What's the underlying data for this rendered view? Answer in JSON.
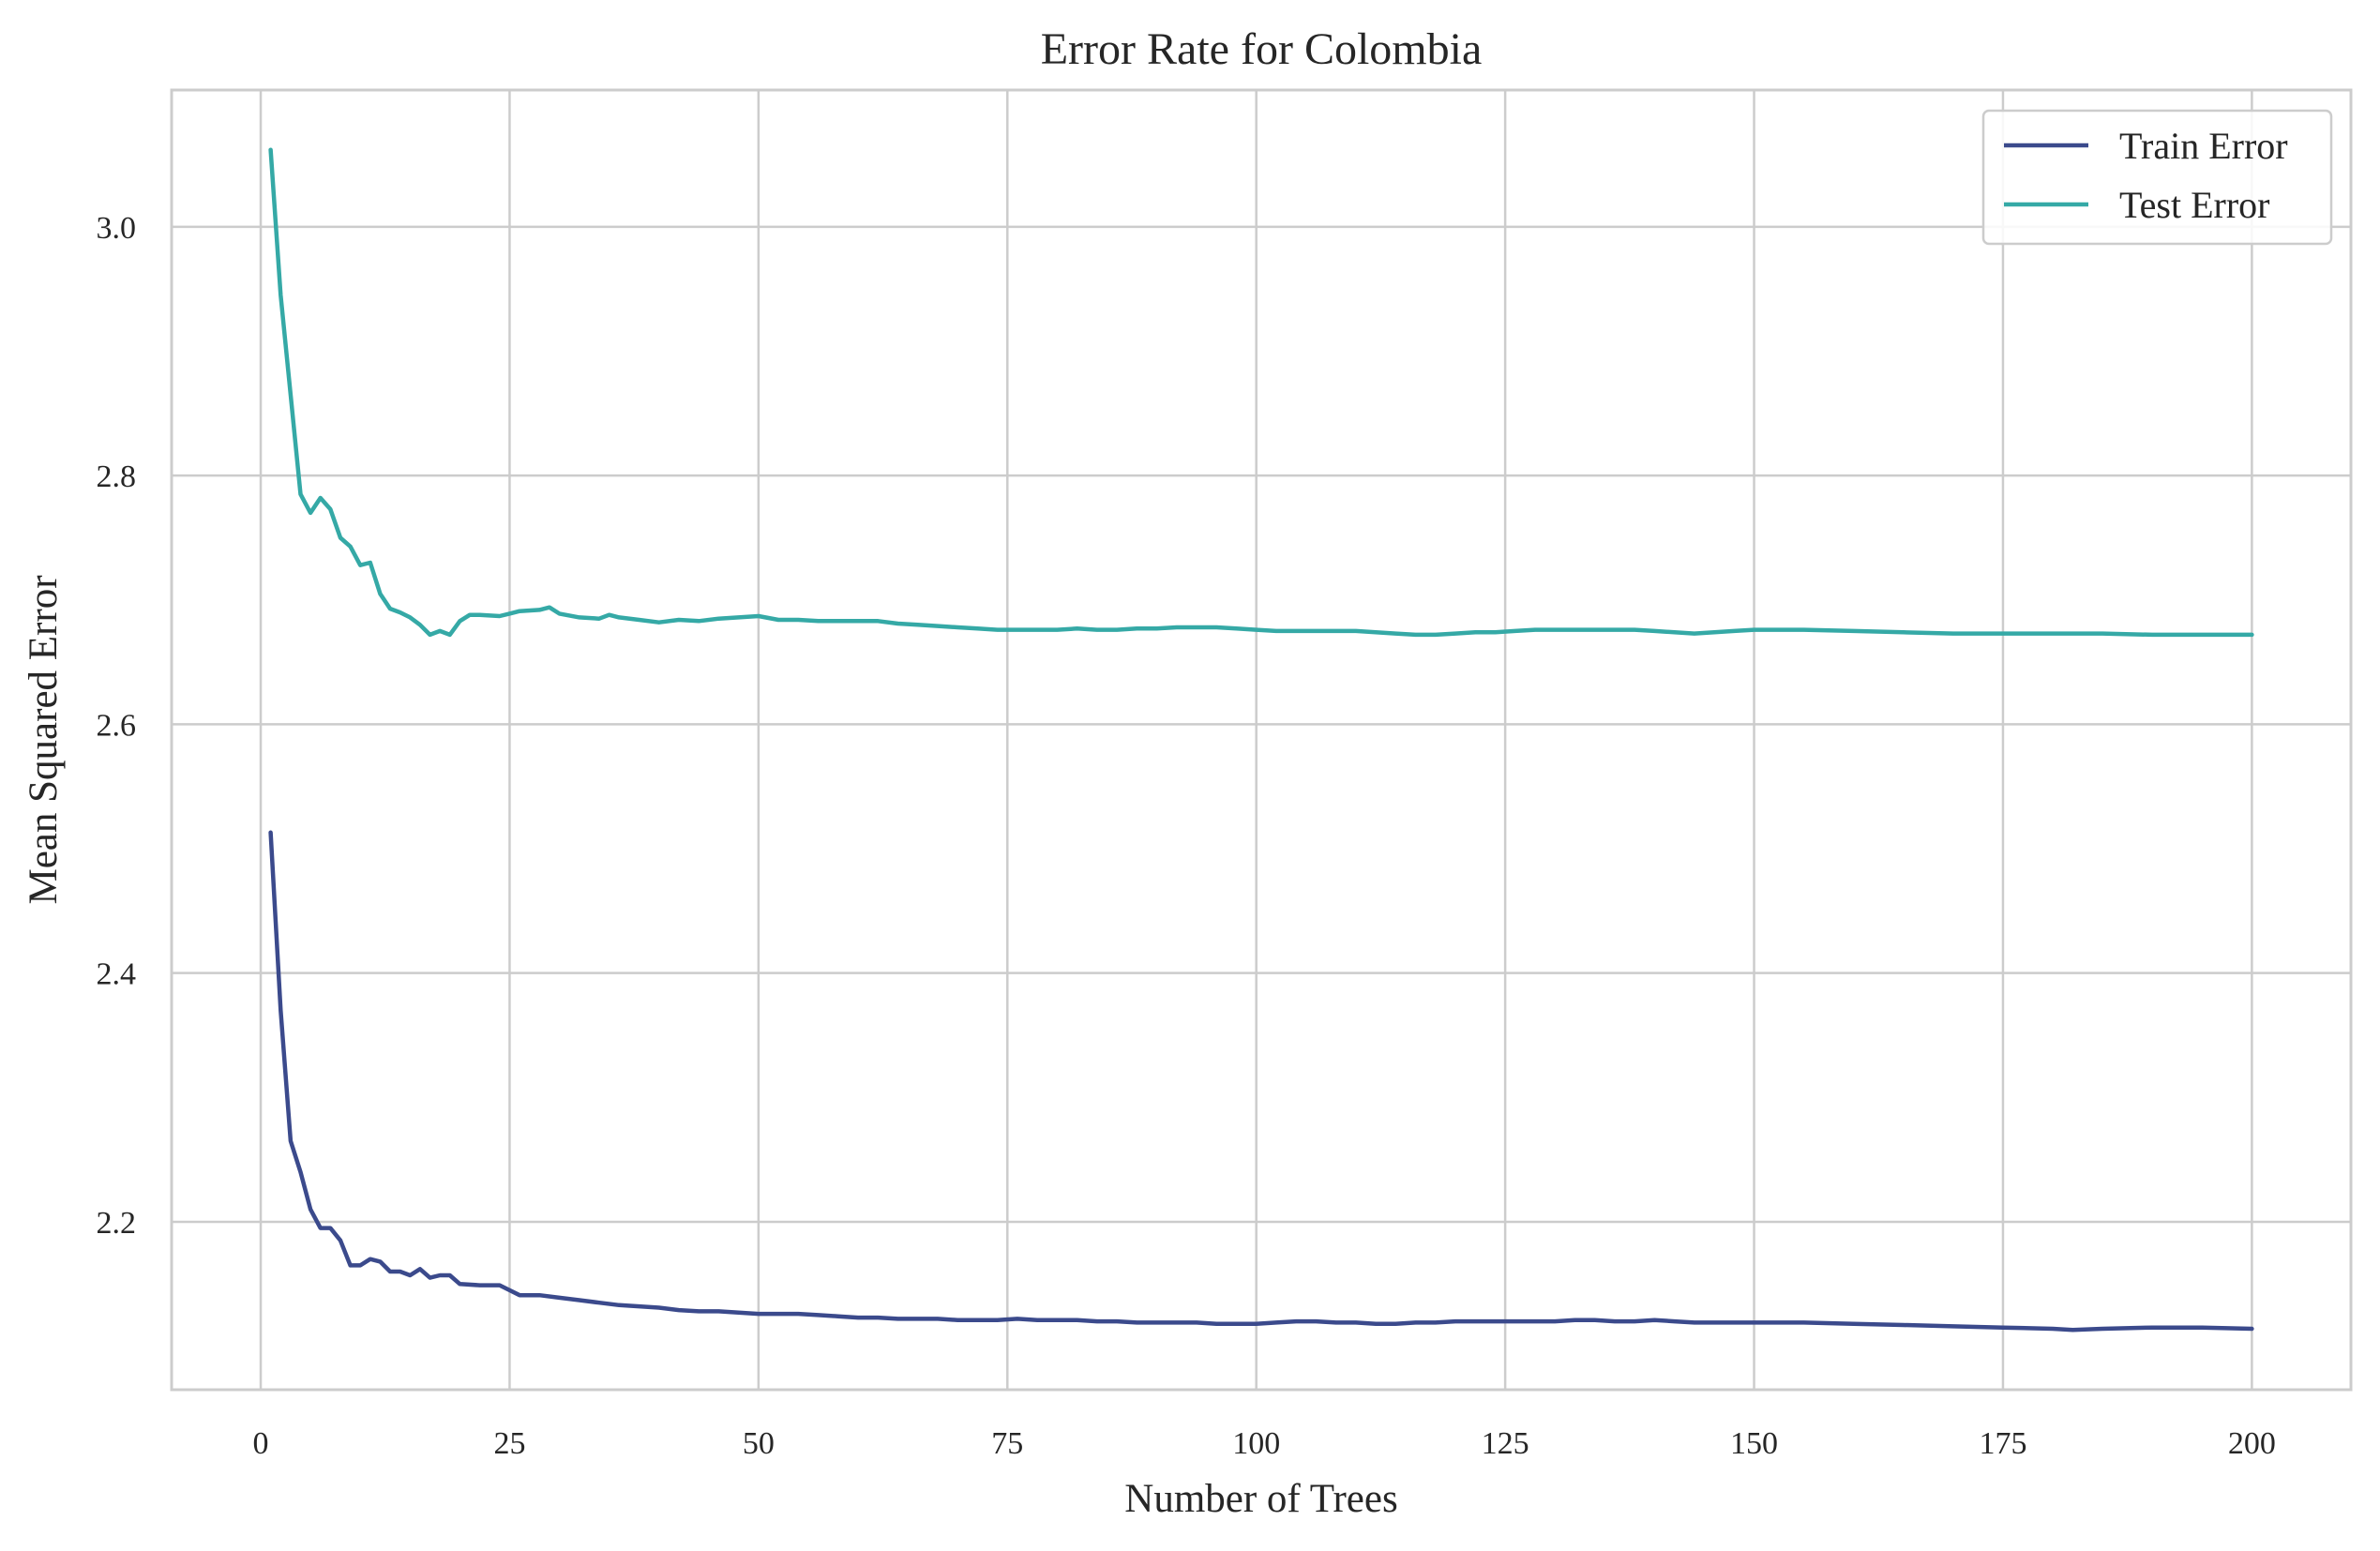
{
  "chart_data": {
    "type": "line",
    "title": "Error Rate for Colombia",
    "xlabel": "Number of Trees",
    "ylabel": "Mean Squared Error",
    "xlim": [
      -8.95,
      209.95
    ],
    "ylim": [
      2.065,
      3.11
    ],
    "xticks": [
      0,
      25,
      50,
      75,
      100,
      125,
      150,
      175,
      200
    ],
    "yticks": [
      2.2,
      2.4,
      2.6,
      2.8,
      3.0
    ],
    "ytick_labels": [
      "2.2",
      "2.4",
      "2.6",
      "2.8",
      "3.0"
    ],
    "grid": true,
    "legend": {
      "position": "top-right",
      "entries": [
        "Train Error",
        "Test Error"
      ]
    },
    "colors": {
      "train": "#3b4a8c",
      "test": "#35a9a6",
      "grid": "#cccccc",
      "axes": "#cccccc"
    },
    "series": [
      {
        "name": "Train Error",
        "color": "#3b4a8c",
        "x": [
          1,
          2,
          3,
          4,
          5,
          6,
          7,
          8,
          9,
          10,
          11,
          12,
          13,
          14,
          15,
          16,
          17,
          18,
          19,
          20,
          22,
          24,
          25,
          26,
          28,
          30,
          32,
          34,
          36,
          38,
          40,
          42,
          44,
          46,
          48,
          50,
          52,
          54,
          56,
          58,
          60,
          62,
          64,
          66,
          68,
          70,
          72,
          74,
          76,
          78,
          80,
          82,
          84,
          86,
          88,
          90,
          92,
          94,
          96,
          98,
          100,
          102,
          104,
          106,
          108,
          110,
          112,
          114,
          116,
          118,
          120,
          122,
          124,
          126,
          128,
          130,
          132,
          134,
          136,
          138,
          140,
          142,
          144,
          146,
          148,
          150,
          155,
          160,
          165,
          170,
          175,
          180,
          182,
          185,
          190,
          195,
          200
        ],
        "values": [
          2.513,
          2.37,
          2.265,
          2.24,
          2.21,
          2.195,
          2.195,
          2.185,
          2.165,
          2.165,
          2.17,
          2.168,
          2.16,
          2.16,
          2.157,
          2.162,
          2.155,
          2.157,
          2.157,
          2.15,
          2.149,
          2.149,
          2.145,
          2.141,
          2.141,
          2.139,
          2.137,
          2.135,
          2.133,
          2.132,
          2.131,
          2.129,
          2.128,
          2.128,
          2.127,
          2.126,
          2.126,
          2.126,
          2.125,
          2.124,
          2.123,
          2.123,
          2.122,
          2.122,
          2.122,
          2.121,
          2.121,
          2.121,
          2.122,
          2.121,
          2.121,
          2.121,
          2.12,
          2.12,
          2.119,
          2.119,
          2.119,
          2.119,
          2.118,
          2.118,
          2.118,
          2.119,
          2.12,
          2.12,
          2.119,
          2.119,
          2.118,
          2.118,
          2.119,
          2.119,
          2.12,
          2.12,
          2.12,
          2.12,
          2.12,
          2.12,
          2.121,
          2.121,
          2.12,
          2.12,
          2.121,
          2.12,
          2.119,
          2.119,
          2.119,
          2.119,
          2.119,
          2.118,
          2.117,
          2.116,
          2.115,
          2.114,
          2.113,
          2.114,
          2.115,
          2.115,
          2.114
        ]
      },
      {
        "name": "Test Error",
        "color": "#35a9a6",
        "x": [
          1,
          2,
          3,
          4,
          5,
          6,
          7,
          8,
          9,
          10,
          11,
          12,
          13,
          14,
          15,
          16,
          17,
          18,
          19,
          20,
          21,
          22,
          24,
          25,
          26,
          28,
          29,
          30,
          32,
          34,
          35,
          36,
          38,
          40,
          42,
          44,
          46,
          48,
          50,
          52,
          54,
          56,
          58,
          60,
          62,
          64,
          66,
          68,
          70,
          72,
          74,
          76,
          78,
          80,
          82,
          84,
          86,
          88,
          90,
          92,
          94,
          96,
          98,
          100,
          102,
          104,
          106,
          108,
          110,
          112,
          114,
          116,
          118,
          120,
          122,
          124,
          126,
          128,
          130,
          132,
          134,
          136,
          138,
          140,
          142,
          144,
          146,
          148,
          150,
          155,
          160,
          165,
          170,
          175,
          180,
          185,
          190,
          195,
          200
        ],
        "values": [
          3.062,
          2.945,
          2.865,
          2.785,
          2.77,
          2.782,
          2.773,
          2.75,
          2.743,
          2.728,
          2.73,
          2.705,
          2.693,
          2.69,
          2.686,
          2.68,
          2.672,
          2.675,
          2.672,
          2.683,
          2.688,
          2.688,
          2.687,
          2.689,
          2.691,
          2.692,
          2.694,
          2.689,
          2.686,
          2.685,
          2.688,
          2.686,
          2.684,
          2.682,
          2.684,
          2.683,
          2.685,
          2.686,
          2.687,
          2.684,
          2.684,
          2.683,
          2.683,
          2.683,
          2.683,
          2.681,
          2.68,
          2.679,
          2.678,
          2.677,
          2.676,
          2.676,
          2.676,
          2.676,
          2.677,
          2.676,
          2.676,
          2.677,
          2.677,
          2.678,
          2.678,
          2.678,
          2.677,
          2.676,
          2.675,
          2.675,
          2.675,
          2.675,
          2.675,
          2.674,
          2.673,
          2.672,
          2.672,
          2.673,
          2.674,
          2.674,
          2.675,
          2.676,
          2.676,
          2.676,
          2.676,
          2.676,
          2.676,
          2.675,
          2.674,
          2.673,
          2.674,
          2.675,
          2.676,
          2.676,
          2.675,
          2.674,
          2.673,
          2.673,
          2.673,
          2.673,
          2.672,
          2.672,
          2.672
        ]
      }
    ]
  }
}
